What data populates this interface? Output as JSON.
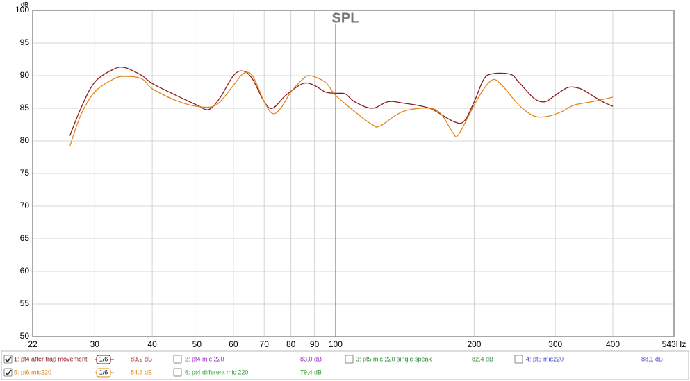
{
  "chart_data": {
    "type": "line",
    "title": "SPL",
    "y_label": "dB",
    "log_x": true,
    "grid": true,
    "cursor_x": 100,
    "xlim": [
      22,
      543
    ],
    "ylim": [
      50,
      100
    ],
    "xticks": [
      22,
      30,
      40,
      50,
      60,
      70,
      80,
      90,
      100,
      200,
      300,
      400,
      {
        "value": 543,
        "label": "543Hz"
      }
    ],
    "yticks": [
      50,
      55,
      60,
      65,
      70,
      75,
      80,
      85,
      90,
      95,
      100
    ],
    "series": [
      {
        "name": "1: pt4 after trap movement",
        "color": "#8b1a1a",
        "checked": true,
        "smoothing": "1/6",
        "level": "83,2 dB",
        "x": [
          26.5,
          28,
          30,
          33,
          35,
          38,
          40,
          45,
          50,
          53,
          56,
          60,
          63,
          66,
          70,
          73,
          78,
          85,
          90,
          95,
          100,
          105,
          110,
          120,
          130,
          140,
          160,
          180,
          190,
          200,
          210,
          220,
          240,
          250,
          270,
          285,
          300,
          320,
          340,
          360,
          380,
          400
        ],
        "values": [
          80.8,
          85,
          89,
          91,
          91.2,
          90,
          88.8,
          87,
          85.5,
          84.8,
          86.5,
          90,
          90.7,
          89.5,
          86,
          85,
          87,
          88.8,
          88.5,
          87.5,
          87.3,
          87.2,
          86,
          85,
          86,
          85.8,
          85,
          83,
          83,
          86,
          89.5,
          90.3,
          90.2,
          89,
          86.5,
          86,
          87,
          88.2,
          88,
          87,
          86,
          85.3
        ]
      },
      {
        "name": "2: pt4 mic 220",
        "color": "#9b30c8",
        "checked": false,
        "level": "83,0 dB"
      },
      {
        "name": "3: pt5 mic 220 single speak",
        "color": "#2e8b3a",
        "checked": false,
        "level": "82,4 dB"
      },
      {
        "name": "4: pt5 mic220",
        "color": "#4a4ad0",
        "checked": false,
        "level": "88,1 dB"
      },
      {
        "name": "5: pt6 mic220",
        "color": "#e0861a",
        "checked": true,
        "smoothing": "1/6",
        "level": "84,6 dB",
        "x": [
          26.5,
          28,
          30,
          33,
          35,
          38,
          40,
          45,
          50,
          55,
          60,
          63,
          66,
          70,
          73,
          76,
          80,
          85,
          88,
          95,
          100,
          110,
          120,
          125,
          140,
          160,
          170,
          180,
          185,
          200,
          210,
          220,
          230,
          250,
          270,
          290,
          310,
          330,
          360,
          400
        ],
        "values": [
          79.2,
          84,
          87.5,
          89.5,
          89.9,
          89.5,
          88,
          86.2,
          85.3,
          85.5,
          88.5,
          90.3,
          90,
          86,
          84.2,
          85,
          87.5,
          89.5,
          90,
          89,
          87,
          84.5,
          82.5,
          82.3,
          84.5,
          85,
          84,
          81.2,
          81,
          85.5,
          88,
          89.4,
          88.5,
          85.5,
          83.8,
          83.8,
          84.5,
          85.5,
          86,
          86.7
        ]
      },
      {
        "name": "6: pt4 different mic 220",
        "color": "#30a030",
        "checked": false,
        "level": "79,4 dB"
      }
    ]
  }
}
